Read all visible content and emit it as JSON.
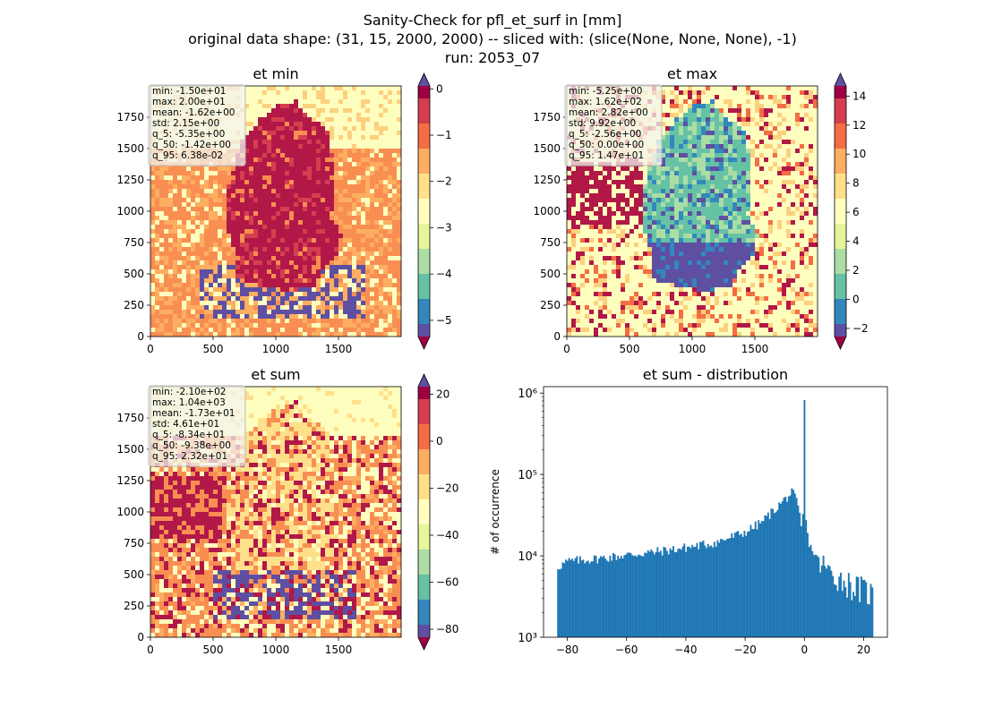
{
  "figure": {
    "title_lines": [
      "Sanity-Check for pfl_et_surf in [mm]",
      "original data shape: (31, 15, 2000, 2000) -- sliced with: (slice(None, None, None), -1)",
      "run: 2053_07"
    ]
  },
  "colors": {
    "hist_bar": "#1f77b4",
    "colormap_spectral": [
      "#9e0142",
      "#d53e4f",
      "#f46d43",
      "#fdae61",
      "#fee08b",
      "#ffffbf",
      "#e6f598",
      "#abdda4",
      "#66c2a5",
      "#3288bd",
      "#5e4fa2"
    ],
    "map_yellow": "#feffbe",
    "map_orange": "#f98e52",
    "map_dark": "#b11848",
    "map_purple": "#5e4fa2",
    "map_teal": "#66c2a5"
  },
  "chart_data": [
    {
      "type": "heatmap",
      "title": "et min",
      "xlim": [
        0,
        2000
      ],
      "ylim": [
        0,
        2000
      ],
      "xticks": [
        "0",
        "500",
        "1000",
        "1500"
      ],
      "yticks": [
        "0",
        "250",
        "500",
        "750",
        "1000",
        "1250",
        "1500",
        "1750"
      ],
      "colormap": "Spectral",
      "colorbar": {
        "vmin": -5.35,
        "vmax": 0.0638,
        "ticks": [
          "0",
          "−1",
          "−2",
          "−3",
          "−4",
          "−5"
        ],
        "extend": "both"
      },
      "stats": [
        "min: -1.50e+01",
        "max: 2.00e+01",
        "mean: -1.62e+00",
        "std: 2.15e+00",
        "q_5: -5.35e+00",
        "q_50: -1.42e+00",
        "q_95: 6.38e-02"
      ]
    },
    {
      "type": "heatmap",
      "title": "et max",
      "xlim": [
        0,
        2000
      ],
      "ylim": [
        0,
        2000
      ],
      "xticks": [
        "0",
        "500",
        "1000",
        "1500"
      ],
      "yticks": [
        "0",
        "250",
        "500",
        "750",
        "1000",
        "1250",
        "1500",
        "1750"
      ],
      "colormap": "Spectral",
      "colorbar": {
        "vmin": -2.56,
        "vmax": 14.7,
        "ticks": [
          "14",
          "12",
          "10",
          "8",
          "6",
          "4",
          "2",
          "0",
          "−2"
        ],
        "extend": "both"
      },
      "stats": [
        "min: -5.25e+00",
        "max: 1.62e+02",
        "mean: 2.82e+00",
        "std: 9.92e+00",
        "q_5: -2.56e+00",
        "q_50: 0.00e+00",
        "q_95: 1.47e+01"
      ]
    },
    {
      "type": "heatmap",
      "title": "et sum",
      "xlim": [
        0,
        2000
      ],
      "ylim": [
        0,
        2000
      ],
      "xticks": [
        "0",
        "500",
        "1000",
        "1500"
      ],
      "yticks": [
        "0",
        "250",
        "500",
        "750",
        "1000",
        "1250",
        "1500",
        "1750"
      ],
      "colormap": "Spectral",
      "colorbar": {
        "vmin": -83.4,
        "vmax": 23.2,
        "ticks": [
          "20",
          "0",
          "−20",
          "−40",
          "−60",
          "−80"
        ],
        "extend": "both"
      },
      "stats": [
        "min: -2.10e+02",
        "max: 1.04e+03",
        "mean: -1.73e+01",
        "std: 4.61e+01",
        "q_5: -8.34e+01",
        "q_50: -9.38e+00",
        "q_95: 2.32e+01"
      ]
    },
    {
      "type": "bar",
      "title": "et sum - distribution",
      "ylabel": "# of occurrence",
      "yscale": "log",
      "xlim": [
        -88,
        28
      ],
      "ylim": [
        1000,
        1200000
      ],
      "xticks": [
        "−80",
        "−60",
        "−40",
        "−20",
        "0",
        "20"
      ],
      "yticks": [
        "10³",
        "10⁴",
        "10⁵",
        "10⁶"
      ],
      "bin_range": [
        -83.4,
        23.2
      ],
      "bins": 200,
      "profile": [
        {
          "x": -83.4,
          "y": 7200
        },
        {
          "x": -80,
          "y": 8500
        },
        {
          "x": -70,
          "y": 9200
        },
        {
          "x": -60,
          "y": 10200
        },
        {
          "x": -50,
          "y": 11200
        },
        {
          "x": -40,
          "y": 12600
        },
        {
          "x": -30,
          "y": 14500
        },
        {
          "x": -20,
          "y": 19500
        },
        {
          "x": -15,
          "y": 25000
        },
        {
          "x": -10,
          "y": 37000
        },
        {
          "x": -6,
          "y": 52000
        },
        {
          "x": -4,
          "y": 60000
        },
        {
          "x": -2.5,
          "y": 45000
        },
        {
          "x": -1.5,
          "y": 30000
        },
        {
          "x": -0.6,
          "y": 18000
        },
        {
          "x": 0,
          "y": 820000
        },
        {
          "x": 0.6,
          "y": 20000
        },
        {
          "x": 2,
          "y": 13000
        },
        {
          "x": 5,
          "y": 8500
        },
        {
          "x": 8,
          "y": 6500
        },
        {
          "x": 12,
          "y": 5200
        },
        {
          "x": 16,
          "y": 4200
        },
        {
          "x": 20,
          "y": 3700
        },
        {
          "x": 23.2,
          "y": 3300
        }
      ]
    }
  ]
}
